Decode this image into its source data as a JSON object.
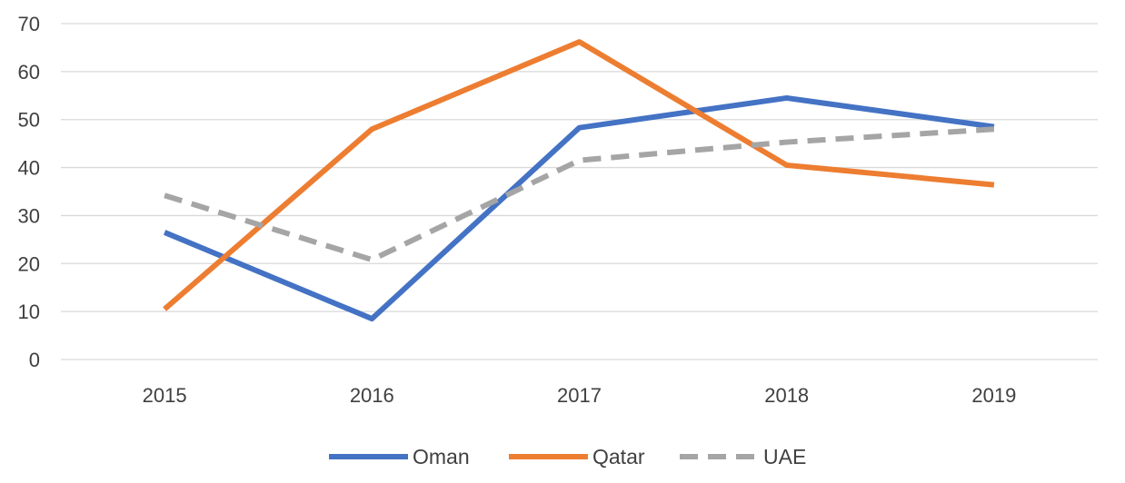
{
  "chart_data": {
    "type": "line",
    "title": "",
    "xlabel": "",
    "ylabel": "",
    "categories": [
      "2015",
      "2016",
      "2017",
      "2018",
      "2019"
    ],
    "ylim": [
      0,
      70
    ],
    "yticks": [
      "0",
      "10",
      "20",
      "30",
      "40",
      "50",
      "60",
      "70"
    ],
    "grid": true,
    "legend_position": "bottom",
    "series": [
      {
        "name": "Oman",
        "values": [
          26.5,
          8.5,
          48.3,
          54.5,
          48.5
        ],
        "color": "#4472C4",
        "dash": "solid"
      },
      {
        "name": "Qatar",
        "values": [
          10.5,
          48.0,
          66.2,
          40.5,
          36.4
        ],
        "color": "#ED7D31",
        "dash": "solid"
      },
      {
        "name": "UAE",
        "values": [
          34.2,
          20.8,
          41.5,
          45.3,
          48.0
        ],
        "color": "#A5A5A5",
        "dash": "dashed"
      }
    ]
  }
}
